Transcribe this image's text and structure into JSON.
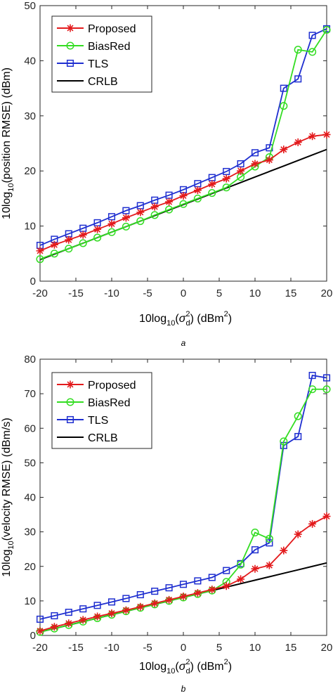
{
  "chart_data": [
    {
      "type": "line",
      "caption": "a",
      "xlabel": {
        "prefix": "10log",
        "sub": "10",
        "open": "(",
        "sigma": "σ",
        "sup": "2",
        "sigsub": "d",
        "close": ") (dBm",
        "unitsup": "2",
        "end": ")"
      },
      "ylabel": {
        "prefix": "10log",
        "sub": "10",
        "rest": "(position RMSE) (dBm)"
      },
      "xlim": [
        -20,
        20
      ],
      "ylim": [
        0,
        50
      ],
      "xticks": [
        -20,
        -15,
        -10,
        -5,
        0,
        5,
        10,
        15,
        20
      ],
      "yticks": [
        0,
        10,
        20,
        30,
        40,
        50
      ],
      "legend_position": "top-left",
      "grid": false,
      "x": [
        -20,
        -18,
        -16,
        -14,
        -12,
        -10,
        -8,
        -6,
        -4,
        -2,
        0,
        2,
        4,
        6,
        8,
        10,
        12,
        14,
        16,
        18,
        20
      ],
      "series": [
        {
          "name": "Proposed",
          "color": "#e31a1c",
          "marker": "star",
          "values": [
            5.5,
            6.6,
            7.5,
            8.4,
            9.4,
            10.4,
            11.5,
            12.5,
            13.5,
            14.4,
            15.5,
            16.5,
            17.6,
            18.6,
            20.0,
            21.3,
            22.0,
            23.9,
            25.2,
            26.3,
            26.6
          ]
        },
        {
          "name": "BiasRed",
          "color": "#33dd22",
          "marker": "circle",
          "values": [
            4.0,
            5.0,
            5.9,
            6.9,
            7.9,
            8.9,
            9.9,
            10.9,
            12.0,
            13.0,
            14.0,
            15.0,
            16.0,
            17.0,
            18.9,
            20.8,
            22.5,
            31.8,
            42.0,
            41.6,
            45.6
          ]
        },
        {
          "name": "TLS",
          "color": "#1f2fd0",
          "marker": "square",
          "values": [
            6.5,
            7.6,
            8.6,
            9.6,
            10.6,
            11.7,
            12.8,
            13.7,
            14.7,
            15.6,
            16.6,
            17.7,
            18.8,
            19.9,
            21.3,
            23.3,
            24.2,
            35.0,
            36.7,
            44.6,
            45.8
          ]
        },
        {
          "name": "CRLB",
          "color": "#000000",
          "marker": "none",
          "values": [
            3.9,
            4.9,
            5.9,
            6.9,
            7.9,
            8.9,
            9.9,
            10.9,
            11.9,
            12.9,
            13.9,
            14.9,
            15.9,
            16.9,
            17.9,
            18.9,
            19.9,
            20.9,
            21.9,
            22.9,
            23.9
          ]
        }
      ]
    },
    {
      "type": "line",
      "caption": "b",
      "xlabel": {
        "prefix": "10log",
        "sub": "10",
        "open": "(",
        "sigma": "σ",
        "sup": "2",
        "sigsub": "d",
        "close": ") (dBm",
        "unitsup": "2",
        "end": ")"
      },
      "ylabel": {
        "prefix": "10log",
        "sub": "10",
        "rest": "(velocity RMSE) (dBm/s)"
      },
      "xlim": [
        -20,
        20
      ],
      "ylim": [
        0,
        80
      ],
      "xticks": [
        -20,
        -15,
        -10,
        -5,
        0,
        5,
        10,
        15,
        20
      ],
      "yticks": [
        0,
        10,
        20,
        30,
        40,
        50,
        60,
        70,
        80
      ],
      "legend_position": "top-left",
      "grid": false,
      "x": [
        -20,
        -18,
        -16,
        -14,
        -12,
        -10,
        -8,
        -6,
        -4,
        -2,
        0,
        2,
        4,
        6,
        8,
        10,
        12,
        14,
        16,
        18,
        20
      ],
      "series": [
        {
          "name": "Proposed",
          "color": "#e31a1c",
          "marker": "star",
          "values": [
            1.3,
            2.5,
            3.5,
            4.5,
            5.5,
            6.4,
            7.3,
            8.3,
            9.3,
            10.3,
            11.3,
            12.3,
            13.3,
            14.3,
            16.3,
            19.3,
            20.3,
            24.6,
            29.3,
            32.3,
            34.5
          ]
        },
        {
          "name": "BiasRed",
          "color": "#33dd22",
          "marker": "circle",
          "values": [
            1.0,
            2.0,
            3.0,
            4.0,
            5.0,
            6.0,
            7.0,
            8.0,
            9.0,
            10.0,
            11.0,
            12.0,
            13.0,
            15.5,
            20.5,
            29.8,
            28.0,
            56.2,
            63.5,
            71.3,
            71.3
          ]
        },
        {
          "name": "TLS",
          "color": "#1f2fd0",
          "marker": "square",
          "values": [
            4.7,
            5.7,
            6.7,
            7.7,
            8.7,
            9.7,
            10.7,
            11.8,
            12.8,
            13.8,
            14.8,
            15.8,
            16.8,
            18.8,
            20.8,
            24.8,
            26.8,
            55.0,
            57.6,
            75.3,
            74.6
          ]
        },
        {
          "name": "CRLB",
          "color": "#000000",
          "marker": "none",
          "values": [
            1.0,
            2.0,
            3.0,
            4.0,
            5.0,
            6.0,
            7.0,
            8.0,
            9.0,
            10.0,
            11.0,
            12.0,
            13.0,
            14.0,
            15.0,
            16.0,
            17.0,
            18.0,
            19.0,
            20.0,
            21.0
          ]
        }
      ]
    }
  ]
}
